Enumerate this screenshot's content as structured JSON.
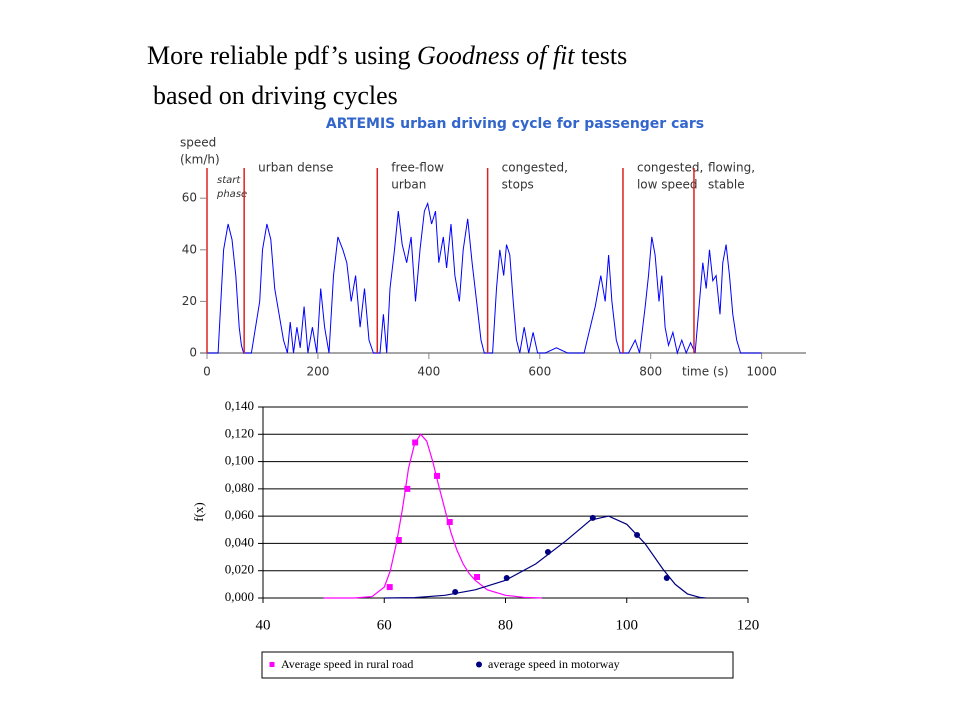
{
  "slide_title": {
    "line1_prefix": "More reliable pdf’s using ",
    "line1_italic": "Goodness of fit",
    "line1_suffix": " tests",
    "line2": "based on driving cycles"
  },
  "chart_data": [
    {
      "type": "line",
      "title": "ARTEMIS urban driving cycle for passenger cars",
      "y_label": [
        "speed",
        "(km/h)"
      ],
      "x_label": "time (s)",
      "color": "#0000ff",
      "phase_color": "#e02020",
      "xlim": [
        0,
        1080
      ],
      "ylim": [
        0,
        75
      ],
      "xticks": [
        0,
        200,
        400,
        600,
        800,
        1000
      ],
      "yticks": [
        0,
        20,
        40,
        60
      ],
      "phases": [
        {
          "x": 0,
          "label": [
            "start",
            "phase"
          ]
        },
        {
          "x": 67,
          "label": [
            "urban dense"
          ]
        },
        {
          "x": 307,
          "label": [
            "free-flow",
            "urban"
          ]
        },
        {
          "x": 506,
          "label": [
            "congested,",
            "stops"
          ]
        },
        {
          "x": 750,
          "label": [
            "congested,",
            "low speed"
          ]
        },
        {
          "x": 878,
          "label": [
            "flowing,",
            "stable"
          ]
        }
      ],
      "x": [
        0,
        20,
        30,
        38,
        45,
        52,
        58,
        62,
        66,
        80,
        95,
        100,
        108,
        115,
        122,
        130,
        138,
        145,
        150,
        156,
        162,
        168,
        175,
        182,
        190,
        198,
        205,
        212,
        220,
        228,
        236,
        245,
        252,
        260,
        268,
        276,
        284,
        292,
        300,
        312,
        318,
        324,
        330,
        338,
        345,
        352,
        360,
        368,
        376,
        384,
        392,
        398,
        405,
        412,
        418,
        426,
        432,
        440,
        447,
        455,
        462,
        470,
        478,
        486,
        494,
        500,
        515,
        522,
        528,
        535,
        540,
        546,
        552,
        558,
        564,
        572,
        580,
        588,
        596,
        610,
        630,
        650,
        680,
        700,
        710,
        718,
        724,
        730,
        738,
        745,
        760,
        772,
        780,
        790,
        796,
        802,
        808,
        815,
        820,
        826,
        832,
        840,
        848,
        856,
        864,
        872,
        880,
        888,
        894,
        900,
        906,
        912,
        918,
        925,
        930,
        936,
        942,
        948,
        955,
        962,
        1000
      ],
      "values": [
        0,
        0,
        40,
        50,
        44,
        30,
        10,
        3,
        0,
        0,
        20,
        40,
        50,
        44,
        25,
        15,
        5,
        0,
        12,
        0,
        10,
        2,
        18,
        0,
        10,
        0,
        25,
        10,
        0,
        30,
        45,
        40,
        35,
        20,
        30,
        10,
        25,
        5,
        0,
        0,
        15,
        0,
        25,
        40,
        55,
        42,
        35,
        45,
        20,
        40,
        55,
        58,
        50,
        55,
        35,
        45,
        33,
        50,
        30,
        20,
        40,
        52,
        35,
        20,
        5,
        0,
        0,
        25,
        40,
        30,
        42,
        38,
        20,
        5,
        0,
        10,
        0,
        8,
        0,
        0,
        2,
        0,
        0,
        18,
        30,
        20,
        38,
        20,
        5,
        0,
        0,
        5,
        0,
        18,
        30,
        45,
        38,
        20,
        30,
        10,
        3,
        8,
        0,
        5,
        0,
        4,
        0,
        20,
        35,
        25,
        40,
        28,
        30,
        15,
        35,
        42,
        30,
        15,
        5,
        0,
        0
      ]
    },
    {
      "type": "scatter",
      "y_label": "f(x)",
      "grid": true,
      "xlim": [
        40,
        120
      ],
      "ylim": [
        0,
        0.14
      ],
      "xticks": [
        40,
        60,
        80,
        100,
        120
      ],
      "yticks": [
        {
          "value": 0,
          "label": "0,000"
        },
        {
          "value": 0.02,
          "label": "0,020"
        },
        {
          "value": 0.04,
          "label": "0,040"
        },
        {
          "value": 0.06,
          "label": "0,060"
        },
        {
          "value": 0.08,
          "label": "0,080"
        },
        {
          "value": 0.1,
          "label": "0,100"
        },
        {
          "value": 0.12,
          "label": "0,120"
        },
        {
          "value": 0.14,
          "label": "0,140"
        }
      ],
      "series": [
        {
          "name": "Average speed in rural road",
          "color": "#ff00ff",
          "marker": "square",
          "x": [
            60.9,
            62.4,
            63.8,
            65.1,
            68.7,
            70.8,
            75.3
          ],
          "values": [
            0.008,
            0.0425,
            0.08,
            0.114,
            0.0895,
            0.0557,
            0.0154
          ],
          "fit_x": [
            50,
            55,
            58,
            60,
            61,
            62,
            63,
            64,
            65,
            66,
            67,
            68,
            69,
            70,
            71,
            72,
            73,
            74,
            75,
            77,
            80,
            83,
            86
          ],
          "fit_values": [
            0,
            0,
            0.001,
            0.008,
            0.02,
            0.04,
            0.065,
            0.095,
            0.113,
            0.12,
            0.115,
            0.1,
            0.082,
            0.065,
            0.048,
            0.035,
            0.025,
            0.018,
            0.013,
            0.006,
            0.002,
            0.0005,
            0
          ]
        },
        {
          "name": "average speed in motorway",
          "color": "#000080",
          "marker": "circle",
          "x": [
            71.7,
            80.2,
            87.0,
            94.4,
            101.7,
            106.6
          ],
          "values": [
            0.0044,
            0.0147,
            0.0337,
            0.0587,
            0.0462,
            0.0147
          ],
          "fit_x": [
            60,
            65,
            70,
            75,
            80,
            85,
            90,
            94,
            97,
            100,
            103,
            106,
            108,
            110,
            112,
            113
          ],
          "fit_values": [
            0,
            0.0003,
            0.002,
            0.006,
            0.013,
            0.025,
            0.042,
            0.057,
            0.06,
            0.054,
            0.04,
            0.021,
            0.01,
            0.003,
            0.0005,
            0
          ]
        }
      ]
    }
  ]
}
